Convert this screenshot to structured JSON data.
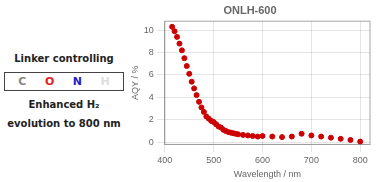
{
  "chart_data": {
    "type": "scatter",
    "title": "ONLH-600",
    "xlabel": "Wavelength / nm",
    "ylabel": "AQY / %",
    "xlim": [
      400,
      820
    ],
    "ylim": [
      -0.2,
      10.8
    ],
    "xticks": [
      400,
      500,
      600,
      700,
      800
    ],
    "yticks": [
      0,
      2,
      4,
      6,
      8,
      10
    ],
    "x": [
      415,
      420,
      425,
      430,
      435,
      440,
      445,
      450,
      455,
      460,
      465,
      470,
      475,
      480,
      485,
      490,
      495,
      500,
      505,
      510,
      515,
      520,
      525,
      530,
      535,
      540,
      545,
      550,
      560,
      570,
      580,
      590,
      600,
      620,
      640,
      660,
      680,
      700,
      720,
      740,
      760,
      780,
      800
    ],
    "values": [
      10.3,
      9.9,
      9.4,
      8.8,
      8.2,
      7.5,
      6.8,
      6.1,
      5.4,
      4.8,
      4.2,
      3.6,
      3.1,
      2.7,
      2.3,
      2.1,
      1.9,
      1.8,
      1.6,
      1.4,
      1.3,
      1.1,
      1.0,
      0.9,
      0.85,
      0.8,
      0.75,
      0.7,
      0.65,
      0.6,
      0.55,
      0.5,
      0.55,
      0.5,
      0.45,
      0.5,
      0.75,
      0.6,
      0.5,
      0.4,
      0.3,
      0.2,
      0.05
    ],
    "color": "#cc0000",
    "annotations": [
      {
        "text": "Linker controlling"
      },
      {
        "text": "C",
        "color": "#888888"
      },
      {
        "text": "O",
        "color": "#dd2222"
      },
      {
        "text": "N",
        "color": "#2222cc"
      },
      {
        "text": "H",
        "color": "#dddddd"
      },
      {
        "text": "Enhanced H₂"
      },
      {
        "text": "evolution to 800 nm"
      }
    ]
  }
}
